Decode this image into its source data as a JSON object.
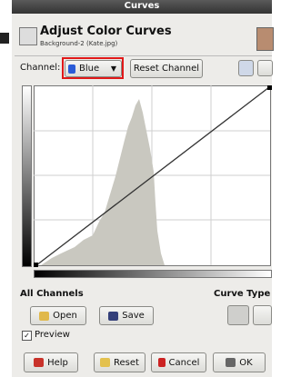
{
  "title_bar": {
    "title": "Curves"
  },
  "header": {
    "title": "Adjust Color Curves",
    "subtitle": "Background-2 (Kate.jpg)"
  },
  "channel": {
    "label": "Channel:",
    "value": "Blue",
    "reset_button": "Reset Channel"
  },
  "section": {
    "all_channels": "All Channels",
    "curve_type": "Curve Type"
  },
  "buttons": {
    "open": "Open",
    "save": "Save"
  },
  "preview": {
    "label": "Preview"
  },
  "footer": {
    "help": "Help",
    "reset": "Reset",
    "cancel": "Cancel",
    "ok": "OK"
  }
}
